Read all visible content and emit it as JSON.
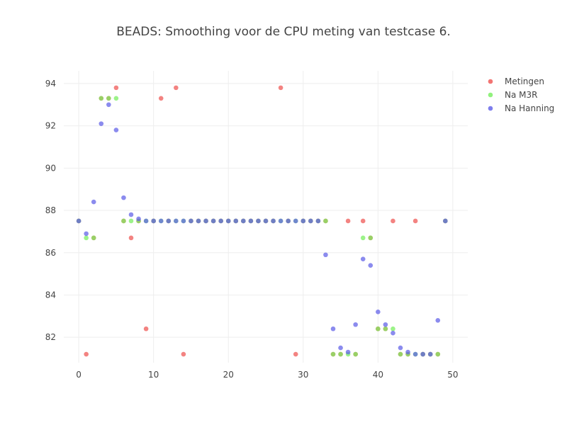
{
  "chart_data": {
    "type": "scatter",
    "title": "BEADS: Smoothing voor de CPU meting van testcase 6.",
    "xlabel": "",
    "ylabel": "",
    "xlim": [
      -2,
      52
    ],
    "ylim": [
      80.8,
      94.6
    ],
    "x_ticks": [
      0,
      10,
      20,
      30,
      40,
      50
    ],
    "y_ticks": [
      82,
      84,
      86,
      88,
      90,
      92,
      94
    ],
    "grid": true,
    "legend_position": "top-right",
    "series": [
      {
        "name": "Metingen",
        "color": "#ef5350",
        "x": [
          0,
          1,
          2,
          3,
          4,
          5,
          6,
          7,
          8,
          9,
          10,
          11,
          12,
          13,
          14,
          15,
          16,
          17,
          18,
          19,
          20,
          21,
          22,
          23,
          24,
          25,
          26,
          27,
          28,
          29,
          30,
          31,
          32,
          33,
          34,
          35,
          36,
          37,
          38,
          39,
          40,
          41,
          42,
          43,
          44,
          45,
          46,
          47,
          48,
          49
        ],
        "y": [
          87.5,
          81.2,
          86.7,
          93.3,
          93.3,
          93.8,
          87.5,
          86.7,
          87.5,
          82.4,
          87.5,
          93.3,
          87.5,
          93.8,
          81.2,
          87.5,
          87.5,
          87.5,
          87.5,
          87.5,
          87.5,
          87.5,
          87.5,
          87.5,
          87.5,
          87.5,
          87.5,
          93.8,
          87.5,
          81.2,
          87.5,
          87.5,
          87.5,
          87.5,
          81.2,
          81.2,
          87.5,
          81.2,
          87.5,
          86.7,
          82.4,
          82.4,
          87.5,
          81.2,
          81.2,
          87.5,
          81.2,
          81.2,
          81.2,
          87.5
        ]
      },
      {
        "name": "Na M3R",
        "color": "#76ee5c",
        "x": [
          0,
          1,
          2,
          3,
          4,
          5,
          6,
          7,
          8,
          9,
          10,
          11,
          12,
          13,
          14,
          15,
          16,
          17,
          18,
          19,
          20,
          21,
          22,
          23,
          24,
          25,
          26,
          27,
          28,
          29,
          30,
          31,
          32,
          33,
          34,
          35,
          36,
          37,
          38,
          39,
          40,
          41,
          42,
          43,
          44,
          45,
          46,
          47,
          48,
          49
        ],
        "y": [
          87.5,
          86.7,
          86.7,
          93.3,
          93.3,
          93.3,
          87.5,
          87.5,
          87.5,
          87.5,
          87.5,
          87.5,
          87.5,
          87.5,
          87.5,
          87.5,
          87.5,
          87.5,
          87.5,
          87.5,
          87.5,
          87.5,
          87.5,
          87.5,
          87.5,
          87.5,
          87.5,
          87.5,
          87.5,
          87.5,
          87.5,
          87.5,
          87.5,
          87.5,
          81.2,
          81.2,
          81.2,
          81.2,
          86.7,
          86.7,
          82.4,
          82.4,
          82.4,
          81.2,
          81.2,
          81.2,
          81.2,
          81.2,
          81.2,
          87.5
        ]
      },
      {
        "name": "Na Hanning",
        "color": "#5e5ee8",
        "x": [
          0,
          1,
          2,
          3,
          4,
          5,
          6,
          7,
          8,
          9,
          10,
          11,
          12,
          13,
          14,
          15,
          16,
          17,
          18,
          19,
          20,
          21,
          22,
          23,
          24,
          25,
          26,
          27,
          28,
          29,
          30,
          31,
          32,
          33,
          34,
          35,
          36,
          37,
          38,
          39,
          40,
          41,
          42,
          43,
          44,
          45,
          46,
          47,
          48,
          49
        ],
        "y": [
          87.5,
          86.9,
          88.4,
          92.1,
          93.0,
          91.8,
          88.6,
          87.8,
          87.6,
          87.5,
          87.5,
          87.5,
          87.5,
          87.5,
          87.5,
          87.5,
          87.5,
          87.5,
          87.5,
          87.5,
          87.5,
          87.5,
          87.5,
          87.5,
          87.5,
          87.5,
          87.5,
          87.5,
          87.5,
          87.5,
          87.5,
          87.5,
          87.5,
          85.9,
          82.4,
          81.5,
          81.3,
          82.6,
          85.7,
          85.4,
          83.2,
          82.6,
          82.2,
          81.5,
          81.3,
          81.2,
          81.2,
          81.2,
          82.8,
          87.5
        ]
      }
    ]
  }
}
